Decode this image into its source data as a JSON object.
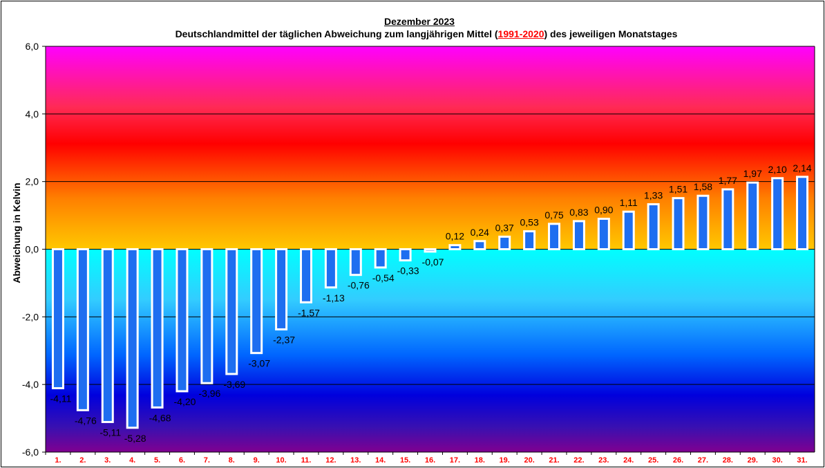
{
  "chart_data": {
    "type": "bar",
    "title": "Dezember 2023",
    "subtitle_before": "Deutschlandmittel der täglichen Abweichung zum langjährigen Mittel (",
    "subtitle_period": "1991-2020",
    "subtitle_after": ") des jeweiligen Monatstages",
    "ylabel": "Abweichung  in Kelvin",
    "xlabel": "",
    "ylim": [
      -6,
      6
    ],
    "yticks": [
      "6,0",
      "4,0",
      "2,0",
      "0,0",
      "-2,0",
      "-4,0",
      "-6,0"
    ],
    "grid": true,
    "legend": "none",
    "categories": [
      "1.",
      "2.",
      "3.",
      "4.",
      "5.",
      "6.",
      "7.",
      "8.",
      "9.",
      "10.",
      "11.",
      "12.",
      "13.",
      "14.",
      "15.",
      "16.",
      "17.",
      "18.",
      "19.",
      "20.",
      "21.",
      "22.",
      "23.",
      "24.",
      "25.",
      "26.",
      "27.",
      "28.",
      "29.",
      "30.",
      "31."
    ],
    "values": [
      -4.11,
      -4.76,
      -5.11,
      -5.28,
      -4.68,
      -4.2,
      -3.96,
      -3.69,
      -3.07,
      -2.37,
      -1.57,
      -1.13,
      -0.76,
      -0.54,
      -0.33,
      -0.07,
      0.12,
      0.24,
      0.37,
      0.53,
      0.75,
      0.83,
      0.9,
      1.11,
      1.33,
      1.51,
      1.58,
      1.77,
      1.97,
      2.1,
      2.14
    ],
    "value_labels": [
      "-4,11",
      "-4,76",
      "-5,11",
      "-5,28",
      "-4,68",
      "-4,20",
      "-3,96",
      "-3,69",
      "-3,07",
      "-2,37",
      "-1,57",
      "-1,13",
      "-0,76",
      "-0,54",
      "-0,33",
      "-0,07",
      "0,12",
      "0,24",
      "0,37",
      "0,53",
      "0,75",
      "0,83",
      "0,90",
      "1,11",
      "1,33",
      "1,51",
      "1,58",
      "1,77",
      "1,97",
      "2,10",
      "2,14"
    ],
    "colors": {
      "bar_fill": "#1e6ef0",
      "bar_outline": "#ffffff",
      "category_label": "#ff0000",
      "warm_gradient": [
        "#ff00ff",
        "#ff3300",
        "#ff0000",
        "#ff8000",
        "#ffcc00"
      ],
      "cold_gradient": [
        "#00ffff",
        "#33ccff",
        "#0066ff",
        "#0000cc",
        "#3300aa",
        "#800090"
      ]
    }
  }
}
